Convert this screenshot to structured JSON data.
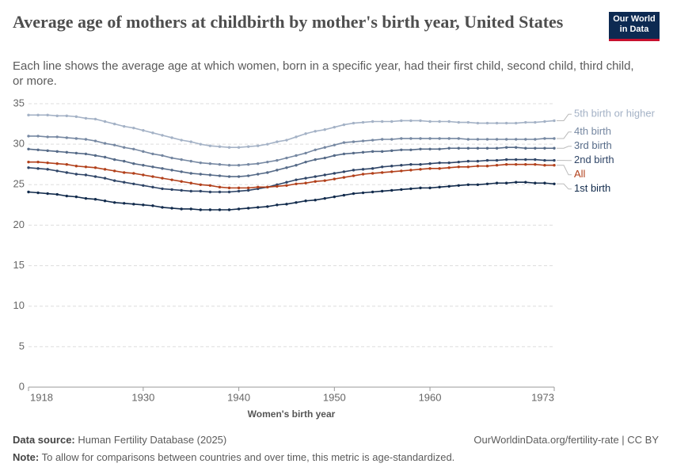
{
  "header": {
    "title": "Average age of mothers at childbirth by mother's birth year, United States",
    "subtitle": "Each line shows the average age at which women, born in a specific year, had their first child, second child, third child, or more.",
    "logo": [
      "Our World",
      "in Data"
    ]
  },
  "chart_data": {
    "type": "line",
    "x_label": "Women's birth year",
    "x": [
      1918,
      1919,
      1920,
      1921,
      1922,
      1923,
      1924,
      1925,
      1926,
      1927,
      1928,
      1929,
      1930,
      1931,
      1932,
      1933,
      1934,
      1935,
      1936,
      1937,
      1938,
      1939,
      1940,
      1941,
      1942,
      1943,
      1944,
      1945,
      1946,
      1947,
      1948,
      1949,
      1950,
      1951,
      1952,
      1953,
      1954,
      1955,
      1956,
      1957,
      1958,
      1959,
      1960,
      1961,
      1962,
      1963,
      1964,
      1965,
      1966,
      1967,
      1968,
      1969,
      1970,
      1971,
      1972,
      1973
    ],
    "xlim": [
      1918,
      1973
    ],
    "xticks": [
      1918,
      1930,
      1940,
      1950,
      1960,
      1973
    ],
    "ylim": [
      0,
      35
    ],
    "yticks": [
      0,
      5,
      10,
      15,
      20,
      25,
      30,
      35
    ],
    "grid": true,
    "series": [
      {
        "name": "5th birth or higher",
        "color": "#a4b2c6",
        "values": [
          33.6,
          33.6,
          33.6,
          33.5,
          33.5,
          33.4,
          33.2,
          33.1,
          32.8,
          32.5,
          32.2,
          32.0,
          31.7,
          31.4,
          31.1,
          30.8,
          30.5,
          30.3,
          30.0,
          29.8,
          29.7,
          29.6,
          29.6,
          29.7,
          29.8,
          30.0,
          30.3,
          30.5,
          30.9,
          31.3,
          31.6,
          31.8,
          32.1,
          32.4,
          32.6,
          32.7,
          32.8,
          32.8,
          32.8,
          32.9,
          32.9,
          32.9,
          32.8,
          32.8,
          32.8,
          32.7,
          32.7,
          32.6,
          32.6,
          32.6,
          32.6,
          32.6,
          32.7,
          32.7,
          32.8,
          32.9
        ]
      },
      {
        "name": "4th birth",
        "color": "#7688a2",
        "values": [
          31.0,
          31.0,
          30.9,
          30.9,
          30.8,
          30.7,
          30.6,
          30.4,
          30.1,
          29.9,
          29.6,
          29.4,
          29.1,
          28.8,
          28.6,
          28.3,
          28.1,
          27.9,
          27.7,
          27.6,
          27.5,
          27.4,
          27.4,
          27.5,
          27.6,
          27.8,
          28.0,
          28.3,
          28.6,
          28.9,
          29.3,
          29.6,
          29.9,
          30.2,
          30.3,
          30.4,
          30.5,
          30.6,
          30.6,
          30.7,
          30.7,
          30.7,
          30.7,
          30.7,
          30.7,
          30.7,
          30.6,
          30.6,
          30.6,
          30.6,
          30.6,
          30.6,
          30.6,
          30.6,
          30.7,
          30.7
        ]
      },
      {
        "name": "3rd birth",
        "color": "#566b88",
        "values": [
          29.4,
          29.3,
          29.2,
          29.1,
          29.0,
          28.9,
          28.8,
          28.6,
          28.4,
          28.1,
          27.9,
          27.6,
          27.4,
          27.2,
          27.0,
          26.8,
          26.6,
          26.4,
          26.3,
          26.2,
          26.1,
          26.0,
          26.0,
          26.1,
          26.3,
          26.5,
          26.8,
          27.1,
          27.4,
          27.8,
          28.1,
          28.3,
          28.6,
          28.8,
          28.9,
          29.0,
          29.1,
          29.1,
          29.2,
          29.3,
          29.3,
          29.4,
          29.4,
          29.4,
          29.5,
          29.5,
          29.5,
          29.5,
          29.5,
          29.5,
          29.6,
          29.6,
          29.5,
          29.5,
          29.5,
          29.5
        ]
      },
      {
        "name": "2nd birth",
        "color": "#2f4567",
        "values": [
          27.1,
          27.0,
          26.9,
          26.7,
          26.5,
          26.3,
          26.2,
          26.0,
          25.8,
          25.5,
          25.3,
          25.1,
          24.9,
          24.7,
          24.5,
          24.4,
          24.3,
          24.2,
          24.2,
          24.1,
          24.1,
          24.1,
          24.2,
          24.3,
          24.5,
          24.7,
          25.0,
          25.3,
          25.6,
          25.8,
          26.0,
          26.2,
          26.4,
          26.6,
          26.8,
          26.9,
          27.0,
          27.2,
          27.3,
          27.4,
          27.5,
          27.5,
          27.6,
          27.7,
          27.7,
          27.8,
          27.9,
          27.9,
          28.0,
          28.0,
          28.1,
          28.1,
          28.1,
          28.1,
          28.0,
          28.0
        ]
      },
      {
        "name": "All",
        "color": "#b2401b",
        "values": [
          27.8,
          27.8,
          27.7,
          27.6,
          27.5,
          27.3,
          27.2,
          27.1,
          26.9,
          26.7,
          26.5,
          26.4,
          26.2,
          26.0,
          25.8,
          25.6,
          25.4,
          25.2,
          25.0,
          24.9,
          24.7,
          24.6,
          24.6,
          24.6,
          24.7,
          24.7,
          24.8,
          24.9,
          25.1,
          25.2,
          25.4,
          25.5,
          25.7,
          25.9,
          26.1,
          26.3,
          26.4,
          26.5,
          26.6,
          26.7,
          26.8,
          26.9,
          27.0,
          27.0,
          27.1,
          27.2,
          27.2,
          27.3,
          27.3,
          27.4,
          27.5,
          27.5,
          27.5,
          27.5,
          27.4,
          27.4
        ]
      },
      {
        "name": "1st birth",
        "color": "#122b4c",
        "values": [
          24.1,
          24.0,
          23.9,
          23.8,
          23.6,
          23.5,
          23.3,
          23.2,
          23.0,
          22.8,
          22.7,
          22.6,
          22.5,
          22.4,
          22.2,
          22.1,
          22.0,
          22.0,
          21.9,
          21.9,
          21.9,
          21.9,
          22.0,
          22.1,
          22.2,
          22.3,
          22.5,
          22.6,
          22.8,
          23.0,
          23.1,
          23.3,
          23.5,
          23.7,
          23.9,
          24.0,
          24.1,
          24.2,
          24.3,
          24.4,
          24.5,
          24.6,
          24.6,
          24.7,
          24.8,
          24.9,
          25.0,
          25.0,
          25.1,
          25.2,
          25.2,
          25.3,
          25.3,
          25.2,
          25.2,
          25.1
        ]
      }
    ]
  },
  "footer": {
    "source_label": "Data source:",
    "source": "Human Fertility Database (2025)",
    "url": "OurWorldinData.org/fertility-rate | CC BY",
    "note_label": "Note:",
    "note": "To allow for comparisons between countries and over time, this metric is age-standardized."
  }
}
